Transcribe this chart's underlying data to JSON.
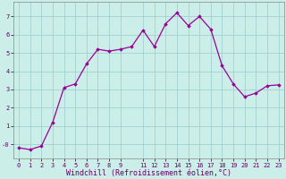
{
  "x": [
    0,
    1,
    2,
    3,
    4,
    5,
    6,
    7,
    8,
    9,
    10,
    11,
    12,
    13,
    14,
    15,
    16,
    17,
    18,
    19,
    20,
    21,
    22,
    23
  ],
  "y": [
    -0.2,
    -0.3,
    -0.1,
    1.2,
    3.1,
    3.3,
    4.4,
    5.2,
    5.1,
    5.2,
    5.35,
    6.25,
    5.35,
    6.6,
    7.2,
    6.5,
    7.0,
    6.3,
    4.3,
    3.3,
    2.6,
    2.8,
    3.2,
    3.25
  ],
  "line_color": "#990099",
  "marker": "D",
  "marker_size": 1.8,
  "line_width": 0.9,
  "bg_color": "#cceee8",
  "grid_color": "#99cccc",
  "xlabel": "Windchill (Refroidissement éolien,°C)",
  "xlabel_color": "#660066",
  "xlabel_fontsize": 6.0,
  "ylim": [
    -0.8,
    7.8
  ],
  "ytick_vals": [
    0,
    1,
    2,
    3,
    4,
    5,
    6,
    7
  ],
  "ytick_labels": [
    "-0",
    "1",
    "2",
    "3",
    "4",
    "5",
    "6",
    "7"
  ],
  "xtick_vals": [
    0,
    1,
    2,
    3,
    4,
    5,
    6,
    7,
    8,
    9,
    11,
    12,
    13,
    14,
    15,
    16,
    17,
    18,
    19,
    20,
    21,
    22,
    23
  ],
  "xtick_labels": [
    "0",
    "1",
    "2",
    "3",
    "4",
    "5",
    "6",
    "7",
    "8",
    "9",
    "11",
    "12",
    "13",
    "14",
    "15",
    "16",
    "17",
    "18",
    "19",
    "20",
    "21",
    "22",
    "23"
  ],
  "tick_fontsize": 5.0,
  "tick_color": "#660066",
  "spine_color": "#888888"
}
